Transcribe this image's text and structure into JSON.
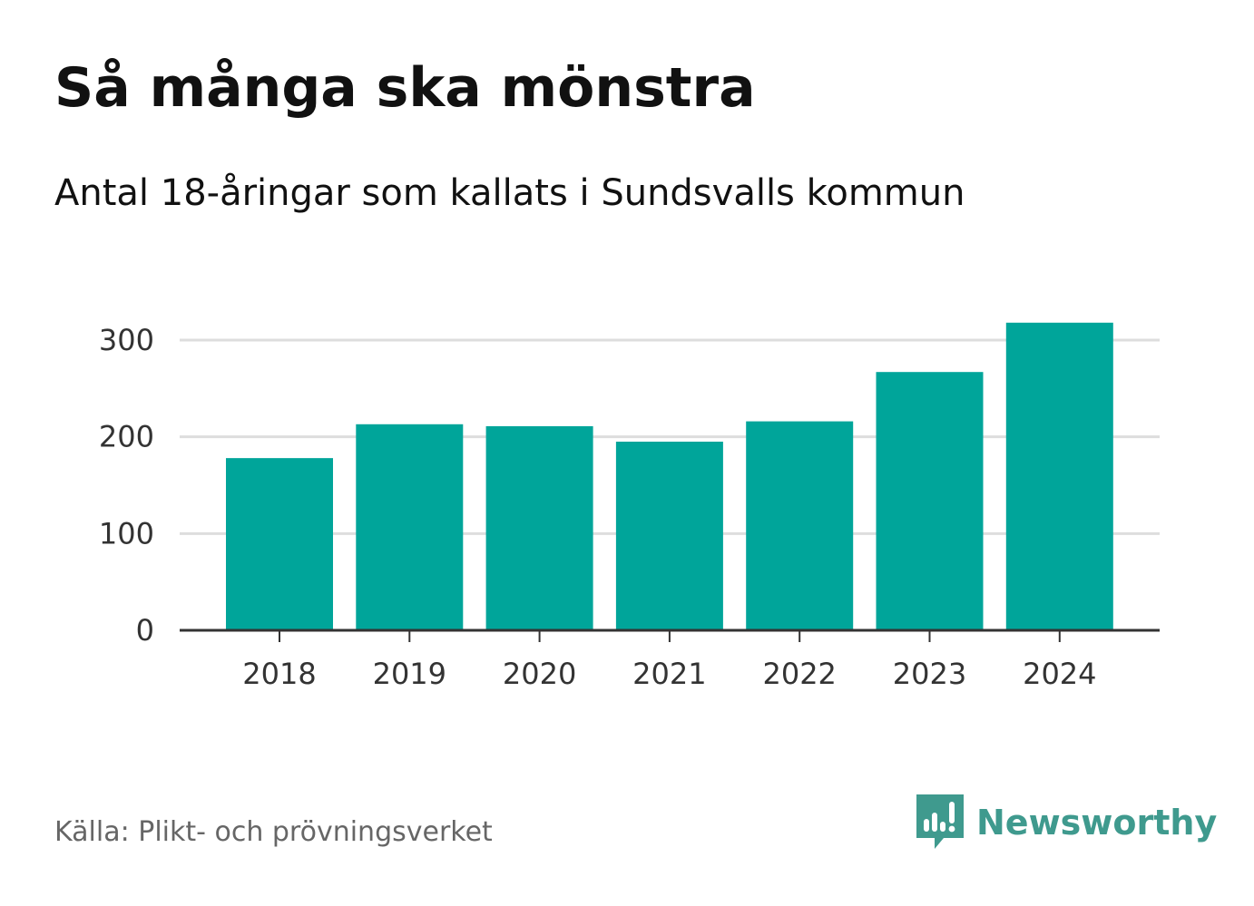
{
  "title": "Så många ska mönstra",
  "subtitle": "Antal 18-åringar som kallats i Sundsvalls kommun",
  "source": "Källa: Plikt- och prövningsverket",
  "brand": "Newsworthy",
  "colors": {
    "bar": "#00a59a",
    "grid": "#dddddd",
    "axis": "#333333",
    "brand": "#3f9a8e"
  },
  "chart_data": {
    "type": "bar",
    "title": "Så många ska mönstra",
    "subtitle": "Antal 18-åringar som kallats i Sundsvalls kommun",
    "xlabel": "",
    "ylabel": "",
    "categories": [
      "2018",
      "2019",
      "2020",
      "2021",
      "2022",
      "2023",
      "2024"
    ],
    "values": [
      178,
      213,
      211,
      195,
      216,
      267,
      318
    ],
    "ylim": [
      0,
      330
    ],
    "yticks": [
      0,
      100,
      200,
      300
    ],
    "grid": true
  }
}
